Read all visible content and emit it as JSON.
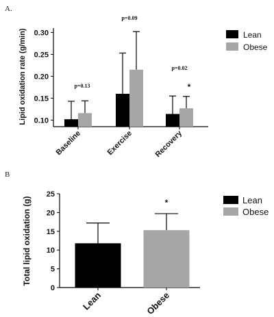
{
  "chart_data": [
    {
      "panel": "A.",
      "type": "bar",
      "title": "",
      "xlabel": "",
      "ylabel": "Lipid oxidation rate (g/min)",
      "ylim": [
        0.085,
        0.31
      ],
      "yticks": [
        "0.10",
        "0.15",
        "0.20",
        "0.25",
        "0.30"
      ],
      "yticks_values": [
        0.1,
        0.15,
        0.2,
        0.25,
        0.3
      ],
      "categories": [
        "Baseline",
        "Exercise",
        "Recovery"
      ],
      "series": [
        {
          "name": "Lean",
          "color": "#000000",
          "values": [
            0.102,
            0.16,
            0.114
          ],
          "error_upper": [
            0.143,
            0.253,
            0.155
          ]
        },
        {
          "name": "Obese",
          "color": "#a6a6a6",
          "values": [
            0.116,
            0.215,
            0.127
          ],
          "error_upper": [
            0.144,
            0.302,
            0.154
          ]
        }
      ],
      "annotations": [
        {
          "text": "p=0.13",
          "category": "Baseline"
        },
        {
          "text": "p=0.09",
          "category": "Exercise"
        },
        {
          "text": "p=0.02",
          "category": "Recovery"
        },
        {
          "text": "*",
          "category": "Recovery",
          "series": "Obese"
        }
      ],
      "legend": {
        "placement": "top-right",
        "entries": [
          "Lean",
          "Obese"
        ]
      },
      "grid": false
    },
    {
      "panel": "B",
      "type": "bar",
      "title": "",
      "xlabel": "",
      "ylabel": "Total lipid oxidation (g)",
      "ylim": [
        0,
        25
      ],
      "yticks": [
        "0",
        "5",
        "10",
        "15",
        "20",
        "25"
      ],
      "yticks_values": [
        0,
        5,
        10,
        15,
        20,
        25
      ],
      "categories": [
        "Lean",
        "Obese"
      ],
      "values": [
        11.8,
        15.3
      ],
      "colors": [
        "#000000",
        "#a6a6a6"
      ],
      "error_upper": [
        17.2,
        19.7
      ],
      "annotations": [
        {
          "text": "*",
          "category": "Obese"
        }
      ],
      "legend": {
        "placement": "top-right",
        "entries": [
          "Lean",
          "Obese"
        ]
      },
      "grid": false
    }
  ]
}
